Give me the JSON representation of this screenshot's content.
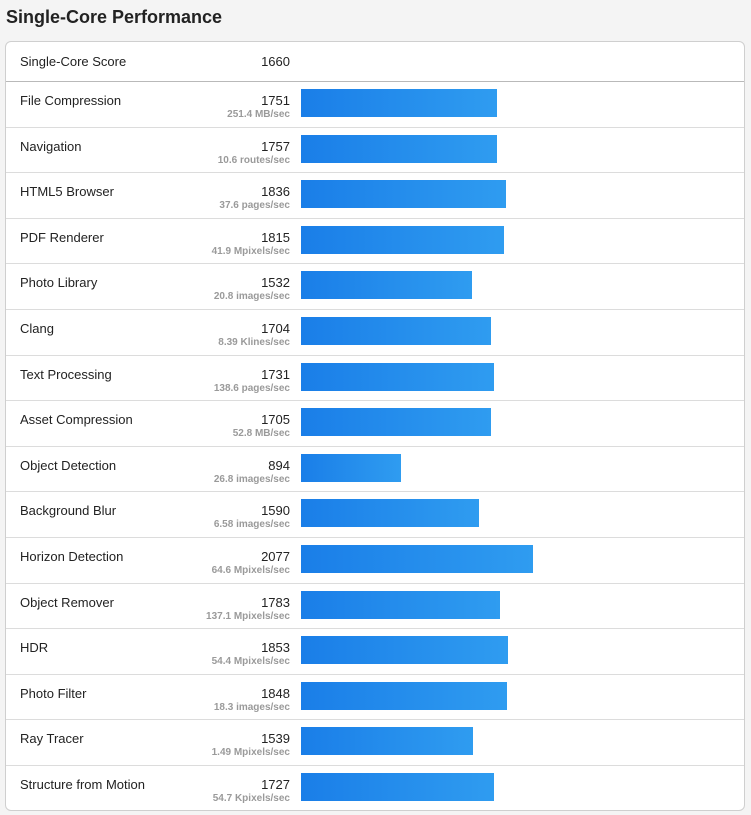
{
  "title": "Single-Core Performance",
  "summary": {
    "label": "Single-Core Score",
    "score": "1660"
  },
  "chart_data": {
    "type": "bar",
    "orientation": "horizontal",
    "title": "Single-Core Performance",
    "xlim": [
      0,
      3000
    ],
    "categories": [
      "File Compression",
      "Navigation",
      "HTML5 Browser",
      "PDF Renderer",
      "Photo Library",
      "Clang",
      "Text Processing",
      "Asset Compression",
      "Object Detection",
      "Background Blur",
      "Horizon Detection",
      "Object Remover",
      "HDR",
      "Photo Filter",
      "Ray Tracer",
      "Structure from Motion"
    ],
    "rows": [
      {
        "name": "File Compression",
        "score": 1751,
        "rate": "251.4 MB/sec"
      },
      {
        "name": "Navigation",
        "score": 1757,
        "rate": "10.6 routes/sec"
      },
      {
        "name": "HTML5 Browser",
        "score": 1836,
        "rate": "37.6 pages/sec"
      },
      {
        "name": "PDF Renderer",
        "score": 1815,
        "rate": "41.9 Mpixels/sec"
      },
      {
        "name": "Photo Library",
        "score": 1532,
        "rate": "20.8 images/sec"
      },
      {
        "name": "Clang",
        "score": 1704,
        "rate": "8.39 Klines/sec"
      },
      {
        "name": "Text Processing",
        "score": 1731,
        "rate": "138.6 pages/sec"
      },
      {
        "name": "Asset Compression",
        "score": 1705,
        "rate": "52.8 MB/sec"
      },
      {
        "name": "Object Detection",
        "score": 894,
        "rate": "26.8 images/sec"
      },
      {
        "name": "Background Blur",
        "score": 1590,
        "rate": "6.58 images/sec"
      },
      {
        "name": "Horizon Detection",
        "score": 2077,
        "rate": "64.6 Mpixels/sec"
      },
      {
        "name": "Object Remover",
        "score": 1783,
        "rate": "137.1 Mpixels/sec"
      },
      {
        "name": "HDR",
        "score": 1853,
        "rate": "54.4 Mpixels/sec"
      },
      {
        "name": "Photo Filter",
        "score": 1848,
        "rate": "18.3 images/sec"
      },
      {
        "name": "Ray Tracer",
        "score": 1539,
        "rate": "1.49 Mpixels/sec"
      },
      {
        "name": "Structure from Motion",
        "score": 1727,
        "rate": "54.7 Kpixels/sec"
      }
    ],
    "bar_color_start": "#1a7ee8",
    "bar_color_end": "#2f9cf0"
  }
}
